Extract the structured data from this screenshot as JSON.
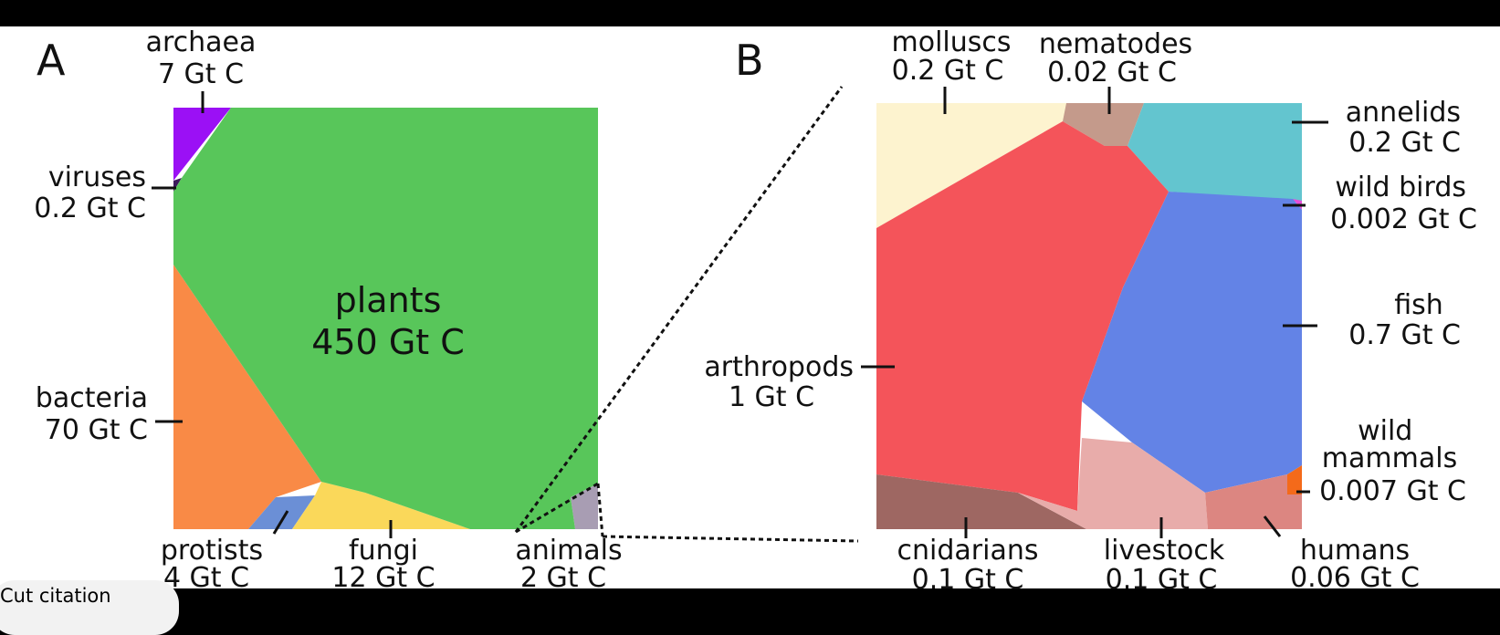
{
  "theme": {
    "page_bg": "#000000",
    "figure_bg": "#ffffff",
    "text_color": "#111111"
  },
  "chart_data": [
    {
      "type": "voronoi-treemap",
      "panel": "A",
      "unit": "Gt C",
      "cells": [
        {
          "name": "plants",
          "label": "plants",
          "value": 450,
          "value_label": "450 Gt C",
          "color": "#58c65a"
        },
        {
          "name": "bacteria",
          "label": "bacteria",
          "value": 70,
          "value_label": "70 Gt C",
          "color": "#f98a46"
        },
        {
          "name": "fungi",
          "label": "fungi",
          "value": 12,
          "value_label": "12 Gt C",
          "color": "#fad85a"
        },
        {
          "name": "archaea",
          "label": "archaea",
          "value": 7,
          "value_label": "7 Gt C",
          "color": "#9b10f5"
        },
        {
          "name": "protists",
          "label": "protists",
          "value": 4,
          "value_label": "4 Gt C",
          "color": "#6b8fd6"
        },
        {
          "name": "animals",
          "label": "animals",
          "value": 2,
          "value_label": "2 Gt C",
          "color": "#a89db3"
        },
        {
          "name": "viruses",
          "label": "viruses",
          "value": 0.2,
          "value_label": "0.2 Gt C",
          "color": "#3c1a5c"
        }
      ]
    },
    {
      "type": "voronoi-treemap",
      "panel": "B",
      "unit": "Gt C",
      "cells": [
        {
          "name": "arthropods",
          "label": "arthropods",
          "value": 1,
          "value_label": "1 Gt C",
          "color": "#f4545a"
        },
        {
          "name": "fish",
          "label": "fish",
          "value": 0.7,
          "value_label": "0.7 Gt C",
          "color": "#6383e6"
        },
        {
          "name": "molluscs",
          "label": "molluscs",
          "value": 0.2,
          "value_label": "0.2 Gt C",
          "color": "#fdf3cf"
        },
        {
          "name": "annelids",
          "label": "annelids",
          "value": 0.2,
          "value_label": "0.2 Gt C",
          "color": "#63c5cf"
        },
        {
          "name": "cnidarians",
          "label": "cnidarians",
          "value": 0.1,
          "value_label": "0.1 Gt C",
          "color": "#9e6762"
        },
        {
          "name": "livestock",
          "label": "livestock",
          "value": 0.1,
          "value_label": "0.1 Gt C",
          "color": "#e8acaa"
        },
        {
          "name": "humans",
          "label": "humans",
          "value": 0.06,
          "value_label": "0.06 Gt C",
          "color": "#dc8681"
        },
        {
          "name": "nematodes",
          "label": "nematodes",
          "value": 0.02,
          "value_label": "0.02 Gt C",
          "color": "#c49a8b"
        },
        {
          "name": "wild mammals",
          "label": "wild\nmammals",
          "value": 0.007,
          "value_label": "0.007 Gt C",
          "color": "#f46a1a"
        },
        {
          "name": "wild birds",
          "label": "wild birds",
          "value": 0.002,
          "value_label": "0.002 Gt C",
          "color": "#e64fd8"
        }
      ]
    }
  ],
  "citation_badge": {
    "text": "Cut citation"
  }
}
